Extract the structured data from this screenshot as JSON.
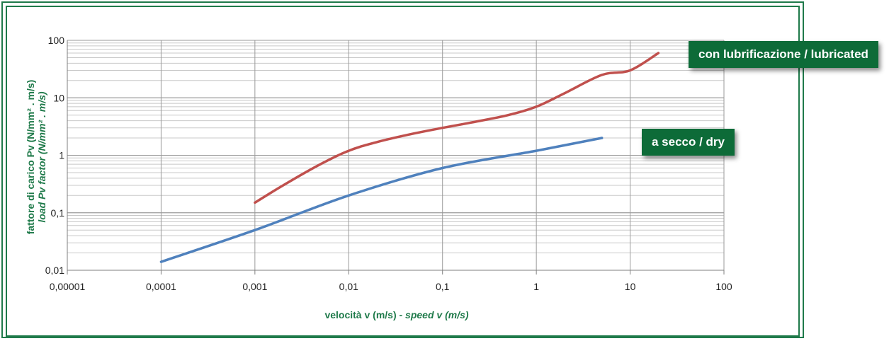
{
  "chart_data": {
    "type": "line",
    "x_scale": "log",
    "y_scale": "log",
    "xlim": [
      1e-05,
      100
    ],
    "ylim": [
      0.01,
      100
    ],
    "x_ticks": [
      "0,00001",
      "0,0001",
      "0,001",
      "0,01",
      "0,1",
      "1",
      "10",
      "100"
    ],
    "y_ticks": [
      "100",
      "10",
      "1",
      "0,1",
      "0,01"
    ],
    "xlabel_regular": "velocità v (m/s) - ",
    "xlabel_italic": "speed v (m/s)",
    "ylabel_line1": "fattore di carico Pv (N/mm² . m/s)",
    "ylabel_line2": "load Pv factor (N/mm² . m/s)",
    "grid": true,
    "series": [
      {
        "name": "con lubrificazione / lubricated",
        "color": "#c0504d",
        "x": [
          0.001,
          0.002,
          0.005,
          0.01,
          0.02,
          0.05,
          0.1,
          0.2,
          0.5,
          1,
          2,
          5,
          10,
          20
        ],
        "y": [
          0.15,
          0.3,
          0.7,
          1.2,
          1.7,
          2.4,
          3.0,
          3.7,
          5.0,
          7.0,
          12,
          25,
          30,
          60
        ]
      },
      {
        "name": "a secco / dry",
        "color": "#4f81bd",
        "x": [
          0.0001,
          0.001,
          0.01,
          0.1,
          1,
          5
        ],
        "y": [
          0.014,
          0.05,
          0.2,
          0.6,
          1.2,
          2
        ]
      }
    ]
  },
  "labels": {
    "lubricated": "con lubrificazione / lubricated",
    "dry": "a secco / dry"
  },
  "colors": {
    "frame": "#1f7a4a",
    "tag": "#0d6b38"
  }
}
